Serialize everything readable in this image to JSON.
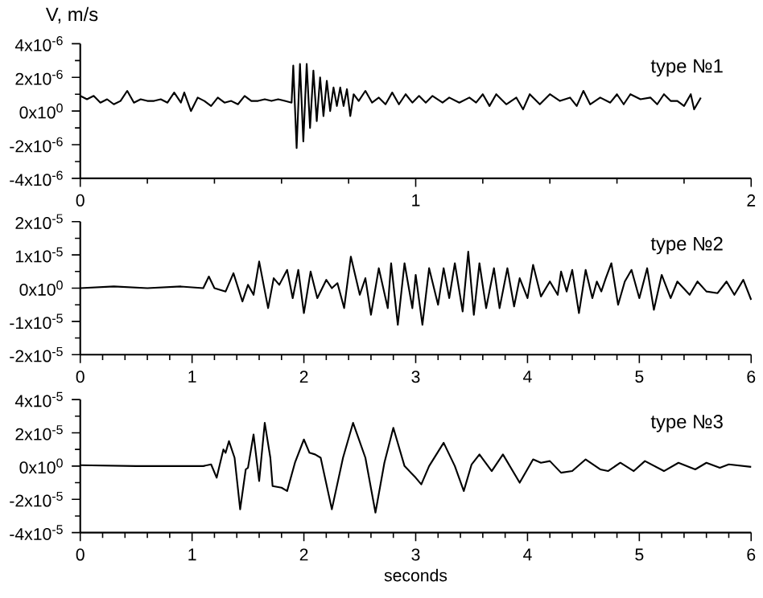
{
  "chart_data": [
    {
      "type": "line",
      "ylabel": "V, m/s",
      "annotations": [
        "type №1"
      ],
      "color": "#000000",
      "xlim": [
        0,
        2
      ],
      "xticks": [
        0,
        1,
        2
      ],
      "ylim": [
        -4e-06,
        4e-06
      ],
      "yticks": [
        {
          "value": -4e-06,
          "label": "-4x10$^{-6}$"
        },
        {
          "value": -2e-06,
          "label": "-2x10$^{-6}$"
        },
        {
          "value": 0,
          "label": "0x10$^{0}$"
        },
        {
          "value": 2e-06,
          "label": "2x10$^{-6}$"
        },
        {
          "value": 4e-06,
          "label": "4x10$^{-6}$"
        }
      ],
      "x": [
        0,
        0.02,
        0.04,
        0.06,
        0.08,
        0.1,
        0.12,
        0.14,
        0.16,
        0.18,
        0.2,
        0.22,
        0.24,
        0.26,
        0.28,
        0.3,
        0.31,
        0.33,
        0.35,
        0.37,
        0.39,
        0.41,
        0.43,
        0.45,
        0.47,
        0.49,
        0.51,
        0.53,
        0.55,
        0.57,
        0.59,
        0.61,
        0.63,
        0.635,
        0.645,
        0.655,
        0.665,
        0.675,
        0.685,
        0.695,
        0.705,
        0.715,
        0.725,
        0.735,
        0.745,
        0.755,
        0.765,
        0.775,
        0.785,
        0.795,
        0.805,
        0.815,
        0.83,
        0.85,
        0.87,
        0.89,
        0.91,
        0.93,
        0.95,
        0.97,
        0.99,
        1.01,
        1.03,
        1.05,
        1.08,
        1.1,
        1.13,
        1.16,
        1.18,
        1.2,
        1.22,
        1.24,
        1.27,
        1.3,
        1.32,
        1.34,
        1.37,
        1.4,
        1.43,
        1.46,
        1.48,
        1.5,
        1.52,
        1.55,
        1.58,
        1.6,
        1.62,
        1.64,
        1.67,
        1.7,
        1.72,
        1.74,
        1.76,
        1.78,
        1.8,
        1.82,
        1.83,
        1.85
      ],
      "values": [
        9e-07,
        7e-07,
        9e-07,
        5e-07,
        7e-07,
        4e-07,
        6e-07,
        1.2e-06,
        5e-07,
        7e-07,
        6e-07,
        6e-07,
        7e-07,
        5e-07,
        1.1e-06,
        5e-07,
        1.1e-06,
        0.0,
        8e-07,
        6e-07,
        3e-07,
        8e-07,
        5e-07,
        6e-07,
        4e-07,
        9e-07,
        6e-07,
        6e-07,
        7e-07,
        6e-07,
        7e-07,
        6e-07,
        5e-07,
        2.7e-06,
        -2.2e-06,
        2.8e-06,
        -1.8e-06,
        2.8e-06,
        -1e-06,
        2.4e-06,
        -6e-07,
        2e-06,
        -3e-07,
        1.8e-06,
        0.0,
        1.4e-06,
        3e-07,
        1.4e-06,
        3e-07,
        1.3e-06,
        -3e-07,
        1e-06,
        6e-07,
        1.2e-06,
        5e-07,
        8e-07,
        4e-07,
        1.1e-06,
        4e-07,
        1e-06,
        5e-07,
        9e-07,
        5e-07,
        9e-07,
        5e-07,
        8e-07,
        5e-07,
        8e-07,
        5e-07,
        1e-06,
        3e-07,
        1e-06,
        4e-07,
        8e-07,
        1e-07,
        1e-06,
        4e-07,
        1e-06,
        6e-07,
        8e-07,
        3e-07,
        1.2e-06,
        4e-07,
        8e-07,
        5e-07,
        1e-06,
        4e-07,
        1e-06,
        7e-07,
        8e-07,
        4e-07,
        1e-06,
        6e-07,
        6e-07,
        3e-07,
        1e-06,
        1e-07,
        8e-07
      ]
    },
    {
      "type": "line",
      "annotations": [
        "type №2"
      ],
      "color": "#000000",
      "xlim": [
        0,
        6
      ],
      "xticks": [
        0,
        1,
        2,
        3,
        4,
        5,
        6
      ],
      "ylim": [
        -2e-05,
        2e-05
      ],
      "yticks": [
        {
          "value": -2e-05,
          "label": "-2x10$^{-5}$"
        },
        {
          "value": -1e-05,
          "label": "-1x10$^{-5}$"
        },
        {
          "value": 0,
          "label": "0x10$^{0}$"
        },
        {
          "value": 1e-05,
          "label": "1x10$^{-5}$"
        },
        {
          "value": 2e-05,
          "label": "2x10$^{-5}$"
        }
      ],
      "x": [
        0,
        0.3,
        0.6,
        0.9,
        1.1,
        1.15,
        1.2,
        1.3,
        1.37,
        1.45,
        1.5,
        1.55,
        1.6,
        1.68,
        1.73,
        1.78,
        1.85,
        1.9,
        1.95,
        2.0,
        2.06,
        2.12,
        2.2,
        2.25,
        2.3,
        2.36,
        2.42,
        2.5,
        2.55,
        2.6,
        2.67,
        2.75,
        2.78,
        2.84,
        2.9,
        2.97,
        3.0,
        3.06,
        3.12,
        3.2,
        3.25,
        3.3,
        3.35,
        3.42,
        3.47,
        3.52,
        3.57,
        3.63,
        3.7,
        3.75,
        3.82,
        3.88,
        3.93,
        4.0,
        4.05,
        4.12,
        4.2,
        4.27,
        4.3,
        4.35,
        4.4,
        4.46,
        4.52,
        4.58,
        4.62,
        4.66,
        4.7,
        4.75,
        4.81,
        4.87,
        4.93,
        5.0,
        5.07,
        5.13,
        5.2,
        5.28,
        5.34,
        5.45,
        5.52,
        5.6,
        5.7,
        5.78,
        5.85,
        5.93,
        6.0
      ],
      "values": [
        0.0,
        5e-07,
        0.0,
        5e-07,
        0.0,
        3.5e-06,
        0.0,
        -1e-06,
        4.5e-06,
        -4e-06,
        1e-06,
        -2e-06,
        8e-06,
        -6e-06,
        3e-06,
        1e-06,
        5.5e-06,
        -3e-06,
        5.5e-06,
        -7.5e-06,
        5e-06,
        -3e-06,
        2.5e-06,
        0.0,
        1.5e-06,
        -6e-06,
        9.5e-06,
        -2e-06,
        3e-06,
        -8e-06,
        6e-06,
        -6e-06,
        7.5e-06,
        -1.1e-05,
        7.5e-06,
        -6e-06,
        4e-06,
        -1.1e-05,
        6e-06,
        -5e-06,
        6e-06,
        -3e-06,
        7.5e-06,
        -7e-06,
        1.1e-05,
        -8e-06,
        7.5e-06,
        -6e-06,
        6e-06,
        -6e-06,
        6e-06,
        -5.5e-06,
        3e-06,
        -3e-06,
        7e-06,
        -2.5e-06,
        2e-06,
        -2e-06,
        5e-06,
        -1e-06,
        5.5e-06,
        -7.5e-06,
        5.5e-06,
        -3e-06,
        2e-06,
        -1e-06,
        3e-06,
        7.5e-06,
        -5e-06,
        2e-06,
        5.5e-06,
        -3e-06,
        6e-06,
        -6.5e-06,
        4e-06,
        -3e-06,
        2e-06,
        -2e-06,
        2e-06,
        -1e-06,
        -1.5e-06,
        2e-06,
        -2e-06,
        2.5e-06,
        -3.5e-06
      ]
    },
    {
      "type": "line",
      "xlabel": "seconds",
      "annotations": [
        "type №3"
      ],
      "color": "#000000",
      "xlim": [
        0,
        6
      ],
      "xticks": [
        0,
        1,
        2,
        3,
        4,
        5,
        6
      ],
      "ylim": [
        -4e-05,
        4e-05
      ],
      "yticks": [
        {
          "value": -4e-05,
          "label": "-4x10$^{-5}$"
        },
        {
          "value": -2e-05,
          "label": "-2x10$^{-5}$"
        },
        {
          "value": 0,
          "label": "0x10$^{0}$"
        },
        {
          "value": 2e-05,
          "label": "2x10$^{-5}$"
        },
        {
          "value": 4e-05,
          "label": "4x10$^{-5}$"
        }
      ],
      "x": [
        0,
        0.5,
        1.0,
        1.1,
        1.17,
        1.22,
        1.28,
        1.3,
        1.33,
        1.38,
        1.43,
        1.48,
        1.5,
        1.55,
        1.6,
        1.65,
        1.7,
        1.72,
        1.8,
        1.85,
        1.92,
        2.0,
        2.05,
        2.1,
        2.15,
        2.25,
        2.35,
        2.44,
        2.55,
        2.64,
        2.72,
        2.8,
        2.9,
        3.0,
        3.05,
        3.12,
        3.25,
        3.35,
        3.43,
        3.5,
        3.57,
        3.68,
        3.78,
        3.93,
        4.05,
        4.12,
        4.2,
        4.3,
        4.4,
        4.52,
        4.65,
        4.72,
        4.83,
        4.95,
        5.05,
        5.22,
        5.35,
        5.5,
        5.6,
        5.72,
        5.8,
        6.0
      ],
      "values": [
        5e-07,
        0.0,
        0.0,
        0.0,
        1e-06,
        -7e-06,
        1e-05,
        8e-06,
        1.5e-05,
        5e-06,
        -2.6e-05,
        -2e-06,
        -1e-06,
        1.9e-05,
        -9e-06,
        2.6e-05,
        5e-06,
        -1.2e-05,
        -1.3e-05,
        -1.5e-05,
        2e-06,
        1.6e-05,
        8e-06,
        7e-06,
        5e-06,
        -2.6e-05,
        5e-06,
        2.6e-05,
        5e-06,
        -2.8e-05,
        2e-06,
        2.3e-05,
        0.0,
        -7e-06,
        -1.1e-05,
        0.0,
        1.4e-05,
        0.0,
        -1.5e-05,
        1e-06,
        7e-06,
        -3e-06,
        7e-06,
        -1e-05,
        4e-06,
        2e-06,
        3e-06,
        -4e-06,
        -3e-06,
        4e-06,
        -2e-06,
        -3e-06,
        2e-06,
        -3e-06,
        3e-06,
        -3e-06,
        2e-06,
        -2e-06,
        2e-06,
        -1e-06,
        1e-06,
        -5e-07
      ]
    }
  ]
}
